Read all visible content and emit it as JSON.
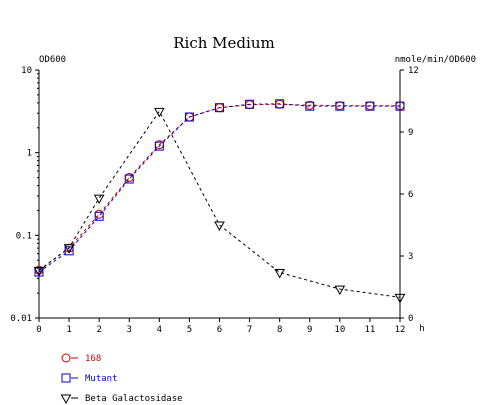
{
  "chart_data": {
    "type": "line",
    "title": "Rich Medium",
    "x": [
      0,
      1,
      2,
      3,
      4,
      5,
      6,
      7,
      8,
      9,
      10,
      11,
      12
    ],
    "xlabel": "h",
    "xlim": [
      0,
      12
    ],
    "x_ticks": [
      "0",
      "1",
      "2",
      "3",
      "4",
      "5",
      "6",
      "7",
      "8",
      "9",
      "10",
      "11",
      "12"
    ],
    "y_left": {
      "label": "OD600",
      "scale": "log",
      "lim": [
        0.01,
        10
      ],
      "ticks": [
        "10",
        "1",
        "0.1",
        "0.01"
      ],
      "tick_values": [
        10,
        1,
        0.1,
        0.01
      ]
    },
    "y_right": {
      "label": "nmole/min/OD600",
      "scale": "linear",
      "lim": [
        0,
        12
      ],
      "ticks": [
        "12",
        "9",
        "6",
        "3",
        "0"
      ],
      "tick_values": [
        12,
        9,
        6,
        3,
        0
      ]
    },
    "grid": false,
    "legend_position": "bottom-left",
    "series": [
      {
        "name": "168",
        "axis": "left",
        "color": "#cc0000",
        "marker": "circle",
        "line": "dashed",
        "x": [
          0,
          1,
          2,
          3,
          4,
          5,
          6,
          7,
          8,
          9,
          10,
          11,
          12
        ],
        "values": [
          0.038,
          0.07,
          0.18,
          0.5,
          1.25,
          2.7,
          3.5,
          3.8,
          3.85,
          3.75,
          3.7,
          3.7,
          3.7
        ]
      },
      {
        "name": "Mutant",
        "axis": "left",
        "color": "#0000cc",
        "marker": "square",
        "line": "dashed",
        "x": [
          0,
          1,
          2,
          3,
          4,
          5,
          6,
          7,
          8,
          9,
          10,
          11,
          12
        ],
        "values": [
          0.036,
          0.065,
          0.17,
          0.48,
          1.2,
          2.7,
          3.5,
          3.85,
          3.9,
          3.65,
          3.65,
          3.65,
          3.65
        ]
      },
      {
        "name": "Beta Galactosidase",
        "axis": "right",
        "color": "#000000",
        "marker": "triangle-down",
        "line": "dashed",
        "x": [
          0,
          1,
          2,
          4,
          6,
          8,
          10,
          12
        ],
        "values": [
          2.3,
          3.4,
          5.8,
          10.0,
          4.5,
          2.2,
          1.4,
          1.0
        ]
      }
    ]
  }
}
